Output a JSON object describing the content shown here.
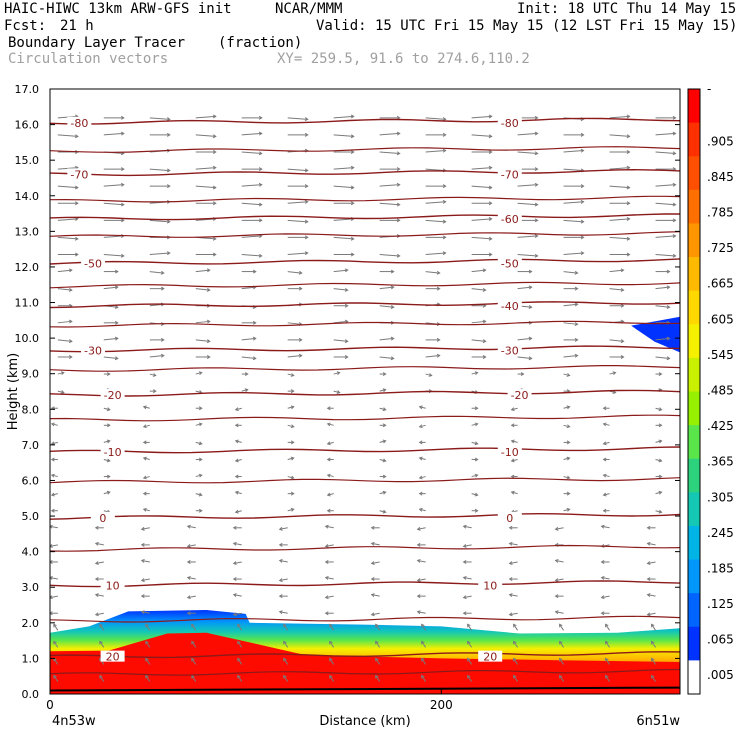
{
  "header": {
    "model": "HAIC-HIWC 13km ARW-GFS init",
    "org": "NCAR/MMM",
    "init": "Init: 18 UTC Thu 14 May 15",
    "fcst_label": "Fcst:",
    "fcst_value": "21 h",
    "valid": "Valid: 15 UTC Fri 15 May 15 (12 LST Fri 15 May 15)",
    "field1": "Boundary Layer Tracer",
    "field1_units": "(fraction)",
    "field2": "Circulation vectors",
    "xy": "XY= 259.5, 91.6 to 274.6,110.2"
  },
  "chart_data": {
    "type": "heatmap",
    "title": "Boundary Layer Tracer",
    "xlabel": "Distance (km)",
    "ylabel": "Height (km)",
    "xlim": [
      0,
      322
    ],
    "ylim": [
      0,
      17
    ],
    "x_ticks": [
      {
        "value": 0,
        "label": "0"
      },
      {
        "value": 200,
        "label": "200"
      }
    ],
    "x_end_labels": {
      "left": "4n53w",
      "right": "6n51w"
    },
    "y_ticks": [
      {
        "value": 0,
        "label": "0.0"
      },
      {
        "value": 1,
        "label": "1.0"
      },
      {
        "value": 2,
        "label": "2.0"
      },
      {
        "value": 3,
        "label": "3.0"
      },
      {
        "value": 4,
        "label": "4.0"
      },
      {
        "value": 5,
        "label": "5.0"
      },
      {
        "value": 6,
        "label": "6.0"
      },
      {
        "value": 7,
        "label": "7.0"
      },
      {
        "value": 8,
        "label": "8.0"
      },
      {
        "value": 9,
        "label": "9.0"
      },
      {
        "value": 10,
        "label": "10.0"
      },
      {
        "value": 11,
        "label": "11.0"
      },
      {
        "value": 12,
        "label": "12.0"
      },
      {
        "value": 13,
        "label": "13.0"
      },
      {
        "value": 14,
        "label": "14.0"
      },
      {
        "value": 15,
        "label": "15.0"
      },
      {
        "value": 16,
        "label": "16.0"
      },
      {
        "value": 17,
        "label": "17.0"
      }
    ],
    "colorbar": {
      "labels": [
        "-",
        ".905",
        ".845",
        ".785",
        ".725",
        ".665",
        ".605",
        ".545",
        ".485",
        ".425",
        ".365",
        ".305",
        ".245",
        ".185",
        ".125",
        ".065",
        ".005"
      ],
      "colors": [
        "#fd0000",
        "#fd3000",
        "#fe5000",
        "#ff7000",
        "#ff9600",
        "#ffb900",
        "#ffd800",
        "#f5f000",
        "#c8f000",
        "#96f000",
        "#5ae64b",
        "#2dd27d",
        "#14c8b4",
        "#00b4e6",
        "#0096fa",
        "#0064ff",
        "#0032ff",
        "#ffffff"
      ]
    },
    "tracer_top_km": [
      [
        0,
        1.72
      ],
      [
        20,
        1.9
      ],
      [
        40,
        2.32
      ],
      [
        80,
        2.36
      ],
      [
        100,
        2.25
      ],
      [
        102,
        2.0
      ],
      [
        160,
        1.95
      ],
      [
        200,
        1.9
      ],
      [
        240,
        1.7
      ],
      [
        290,
        1.72
      ],
      [
        322,
        1.85
      ]
    ],
    "red_core_top_km": [
      [
        0,
        1.2
      ],
      [
        30,
        1.22
      ],
      [
        60,
        1.7
      ],
      [
        80,
        1.72
      ],
      [
        102,
        1.45
      ],
      [
        130,
        1.1
      ],
      [
        200,
        1.0
      ],
      [
        260,
        0.95
      ],
      [
        322,
        0.9
      ]
    ],
    "upper_blue_patch": {
      "x_range": [
        297,
        322
      ],
      "y_range": [
        9.6,
        10.6
      ]
    },
    "temperature_contours": [
      {
        "value": -80,
        "label": "-80",
        "y_km": 16.05,
        "label_x": [
          15,
          235
        ]
      },
      {
        "value": -70,
        "label": "-70",
        "y_km": 14.6,
        "label_x": [
          15,
          235
        ]
      },
      {
        "value": -60,
        "label": "-60",
        "y_km": 13.35,
        "label_x": [
          235
        ]
      },
      {
        "value": -50,
        "label": "-50",
        "y_km": 12.1,
        "label_x": [
          22,
          235
        ]
      },
      {
        "value": -40,
        "label": "-40",
        "y_km": 10.9,
        "label_x": [
          235
        ]
      },
      {
        "value": -30,
        "label": "-30",
        "y_km": 9.65,
        "label_x": [
          22,
          235
        ]
      },
      {
        "value": -20,
        "label": "-20",
        "y_km": 8.4,
        "label_x": [
          32,
          240
        ]
      },
      {
        "value": -10,
        "label": "-10",
        "y_km": 6.8,
        "label_x": [
          32,
          235
        ]
      },
      {
        "value": 0,
        "label": "0",
        "y_km": 4.95,
        "label_x": [
          27,
          235
        ]
      },
      {
        "value": 10,
        "label": "10",
        "y_km": 3.05,
        "label_x": [
          32,
          225
        ]
      },
      {
        "value": 20,
        "label": "20",
        "y_km": 1.05,
        "label_x": [
          32,
          225
        ]
      }
    ],
    "extra_contours_km": [
      15.25,
      13.85,
      12.85,
      11.45,
      10.35,
      9.1,
      7.7,
      5.95,
      4.05,
      2.05,
      0.55
    ]
  }
}
